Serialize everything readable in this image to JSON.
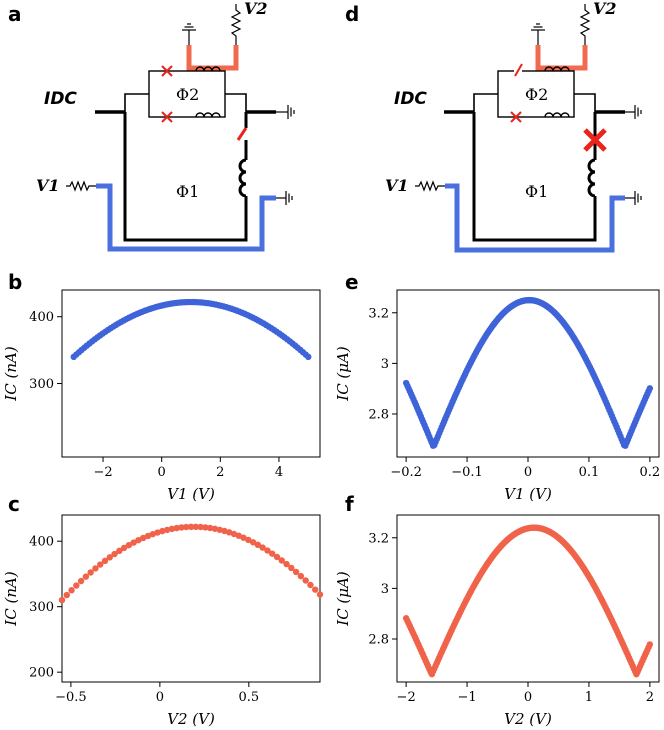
{
  "panel_labels": {
    "a": "a",
    "b": "b",
    "c": "c",
    "d": "d",
    "e": "e",
    "f": "f"
  },
  "circuit": {
    "idc": "IDC",
    "v1": "V1",
    "v2": "V2",
    "phi1": "Φ1",
    "phi2": "Φ2",
    "colors": {
      "v1_line": "#4a6fde",
      "v2_line": "#f06a4f",
      "junction": "#e8241c",
      "wire": "#000000"
    }
  },
  "chart_data": [
    {
      "panel": "b",
      "type": "scatter",
      "xlabel": "V1 (V)",
      "ylabel": "IC (nA)",
      "xlim": [
        -3.4,
        5.4
      ],
      "ylim": [
        190,
        440
      ],
      "xticks": [
        -2,
        0,
        2,
        4
      ],
      "yticks": [
        300,
        400
      ],
      "color": "#3f63d8",
      "model": {
        "kind": "cos",
        "x_from": -3.0,
        "x_to": 5.0,
        "n": 90,
        "center": 1.0,
        "period": 20.0,
        "amp": 430,
        "offset": -8
      }
    },
    {
      "panel": "c",
      "type": "scatter",
      "xlabel": "V2 (V)",
      "ylabel": "IC (nA)",
      "xlim": [
        -0.55,
        0.9
      ],
      "ylim": [
        185,
        440
      ],
      "xticks": [
        -0.5,
        0.0,
        0.5
      ],
      "yticks": [
        200,
        300,
        400
      ],
      "color": "#f0634a",
      "model": {
        "kind": "cos",
        "x_from": -0.55,
        "x_to": 0.9,
        "n": 55,
        "center": 0.19,
        "period": 3.15,
        "amp": 430,
        "offset": -8
      }
    },
    {
      "panel": "e",
      "type": "scatter",
      "xlabel": "V1 (V)",
      "ylabel": "IC (μA)",
      "xlim": [
        -0.215,
        0.215
      ],
      "ylim": [
        2.63,
        3.29
      ],
      "xticks": [
        -0.2,
        -0.1,
        0.0,
        0.1,
        0.2
      ],
      "yticks": [
        2.8,
        3.0,
        3.2
      ],
      "color": "#3f63d8",
      "model": {
        "kind": "abs",
        "x_from": -0.2,
        "x_to": 0.2,
        "n": 200,
        "center": -0.155,
        "period": 0.157,
        "amp": 0.58,
        "offset": 2.67
      }
    },
    {
      "panel": "f",
      "type": "scatter",
      "xlabel": "V2 (V)",
      "ylabel": "IC (μA)",
      "xlim": [
        -2.15,
        2.15
      ],
      "ylim": [
        2.63,
        3.29
      ],
      "xticks": [
        -2,
        -1,
        0,
        1,
        2
      ],
      "yticks": [
        2.8,
        3.0,
        3.2
      ],
      "color": "#f0634a",
      "model": {
        "kind": "abs",
        "x_from": -2.0,
        "x_to": 2.0,
        "n": 200,
        "center": -1.58,
        "period": 1.68,
        "amp": 0.58,
        "offset": 2.66
      }
    }
  ]
}
